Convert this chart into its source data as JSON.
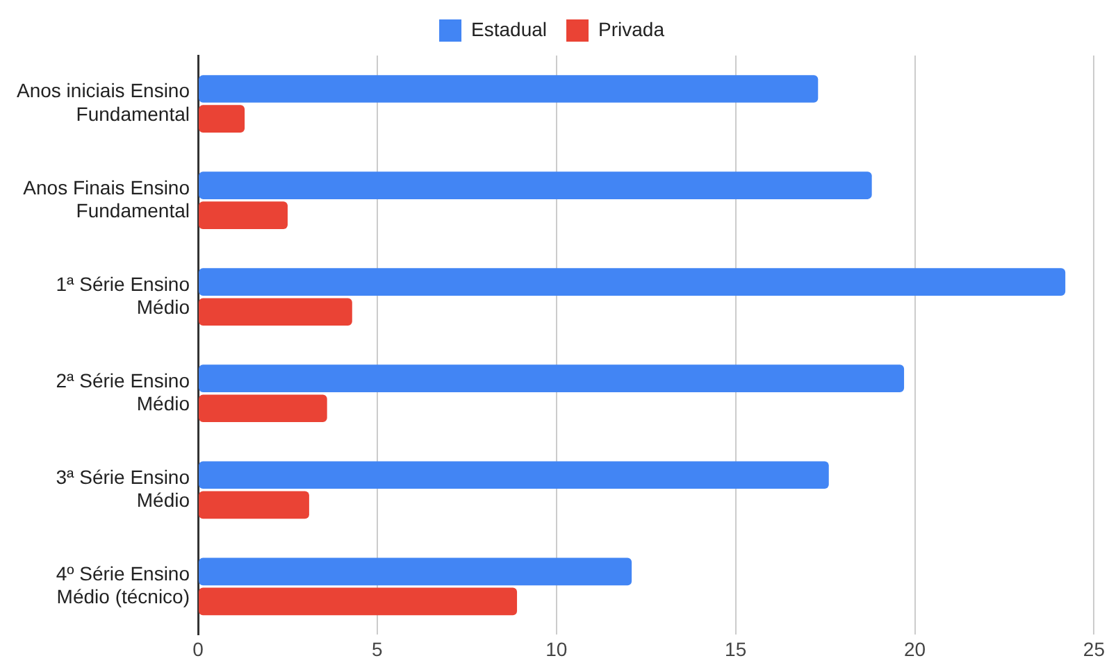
{
  "chart_data": {
    "type": "bar",
    "orientation": "horizontal",
    "categories": [
      "Anos iniciais Ensino Fundamental",
      "Anos Finais Ensino Fundamental",
      "1ª Série Ensino Médio",
      "2ª Série Ensino Médio",
      "3ª Série Ensino Médio",
      "4º Série Ensino Médio (técnico)"
    ],
    "series": [
      {
        "name": "Estadual",
        "color": "#4285f4",
        "values": [
          17.3,
          18.8,
          24.2,
          19.7,
          17.6,
          12.1
        ]
      },
      {
        "name": "Privada",
        "color": "#ea4335",
        "values": [
          1.3,
          2.5,
          4.3,
          3.6,
          3.1,
          8.9
        ]
      }
    ],
    "xlim": [
      0,
      25
    ],
    "xticks": [
      0,
      5,
      10,
      15,
      20,
      25
    ],
    "grid": "x",
    "legend": "top"
  }
}
